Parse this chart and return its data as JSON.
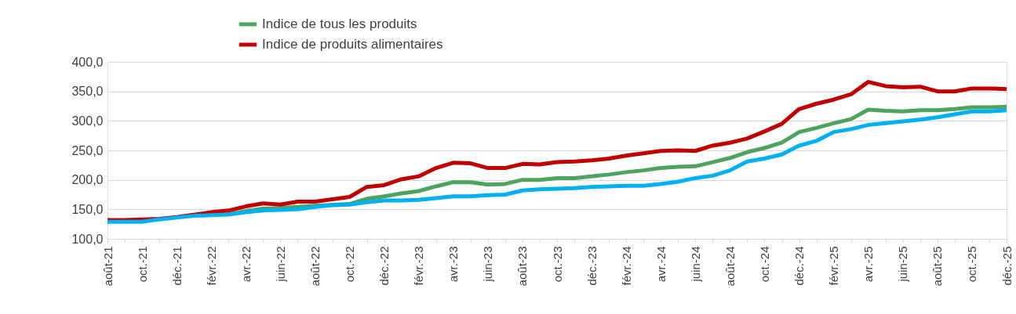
{
  "chart_data": {
    "type": "line",
    "categories": [
      "août-21",
      null,
      "oct.-21",
      null,
      "déc.-21",
      null,
      "févr.-22",
      null,
      "avr.-22",
      null,
      "juin-22",
      null,
      "août-22",
      null,
      "oct.-22",
      null,
      "déc.-22",
      null,
      "févr.-23",
      null,
      "avr.-23",
      null,
      "juin-23",
      null,
      "août-23",
      null,
      "oct.-23",
      null,
      "déc.-23",
      null,
      "févr.-24",
      null,
      "avr.-24",
      null,
      "juin-24",
      null,
      "août-24",
      null,
      "oct.-24",
      null,
      "déc.-24",
      null,
      "févr.-25",
      null,
      "avr.-25",
      null,
      "juin-25",
      null,
      "août-25",
      null,
      "oct.-25",
      null,
      "déc.-25"
    ],
    "series": [
      {
        "name": "Indice de tous les produits",
        "color": "#4ea35f",
        "values": [
          null,
          null,
          null,
          null,
          null,
          null,
          141,
          142,
          147,
          151,
          152,
          154,
          156,
          null,
          159,
          168,
          172,
          177,
          181,
          189,
          196,
          196,
          192,
          193,
          200,
          200,
          203,
          203,
          206,
          209,
          213,
          216,
          220,
          222,
          223,
          230,
          237,
          247,
          254,
          263,
          281,
          288,
          296,
          303,
          319,
          317,
          316,
          318,
          318,
          320,
          323,
          323,
          324
        ]
      },
      {
        "name": "Indice de produits alimentaires",
        "color": "#c00000",
        "values": [
          132,
          132,
          133,
          134,
          137,
          141,
          145,
          148,
          155,
          160,
          158,
          163,
          163,
          167,
          171,
          188,
          191,
          201,
          206,
          220,
          229,
          228,
          220,
          220,
          227,
          226,
          230,
          231,
          233,
          236,
          241,
          245,
          249,
          250,
          249,
          258,
          263,
          270,
          282,
          295,
          320,
          329,
          336,
          345,
          366,
          359,
          357,
          358,
          350,
          350,
          355,
          355,
          354
        ]
      },
      {
        "color": "#00b0f0",
        "values": [
          129,
          129,
          129,
          133,
          136,
          139,
          140,
          141,
          145,
          148,
          149,
          150,
          154,
          157,
          158,
          162,
          165,
          165,
          166,
          169,
          172,
          172,
          174,
          175,
          182,
          184,
          185,
          186,
          188,
          189,
          190,
          190,
          193,
          197,
          203,
          207,
          216,
          231,
          236,
          243,
          258,
          266,
          281,
          286,
          293,
          296,
          299,
          302,
          306,
          311,
          316,
          316,
          318
        ]
      }
    ],
    "ylim": [
      100,
      400
    ],
    "yticks": [
      {
        "value": 100,
        "label": "100,0"
      },
      {
        "value": 150,
        "label": "150,0"
      },
      {
        "value": 200,
        "label": "200,0"
      },
      {
        "value": 250,
        "label": "250,0"
      },
      {
        "value": 300,
        "label": "300,0"
      },
      {
        "value": 350,
        "label": "350,0"
      },
      {
        "value": 400,
        "label": "400,0"
      }
    ],
    "grid": "y",
    "legend": "top",
    "marker": "none",
    "line_style": "solid"
  }
}
